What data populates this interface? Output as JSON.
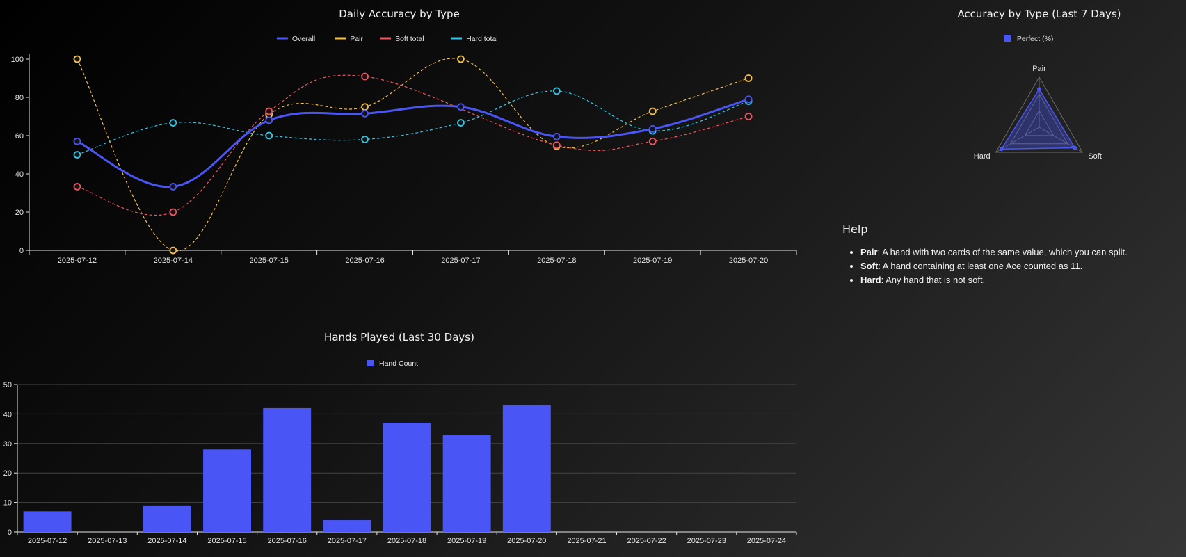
{
  "chart_data": [
    {
      "type": "line",
      "title": "Daily Accuracy by Type",
      "categories": [
        "2025-07-12",
        "2025-07-14",
        "2025-07-15",
        "2025-07-16",
        "2025-07-17",
        "2025-07-18",
        "2025-07-19",
        "2025-07-20"
      ],
      "ylim": [
        0,
        100
      ],
      "yticks": [
        0,
        20,
        40,
        60,
        80,
        100
      ],
      "legend_position": "top-center",
      "grid": false,
      "series": [
        {
          "name": "Overall",
          "color": "#4a55f5",
          "style": "solid",
          "values": [
            57,
            33.3,
            68,
            71.5,
            75,
            59.5,
            63.5,
            79
          ]
        },
        {
          "name": "Pair",
          "color": "#f5c04a",
          "style": "dashed",
          "values": [
            100,
            0,
            71,
            75,
            100,
            54.5,
            72.7,
            90
          ]
        },
        {
          "name": "Soft total",
          "color": "#ee5560",
          "style": "dashed",
          "values": [
            33.3,
            20,
            72.7,
            90.9,
            null,
            55,
            57,
            70
          ]
        },
        {
          "name": "Hard total",
          "color": "#33c6e8",
          "style": "dashed",
          "values": [
            50,
            66.7,
            60,
            58,
            66.7,
            83.3,
            62.5,
            78
          ]
        }
      ]
    },
    {
      "type": "radar",
      "title": "Accuracy by Type (Last 7 Days)",
      "legend_position": "top-center",
      "axes": [
        "Pair",
        "Soft",
        "Hard"
      ],
      "series": [
        {
          "name": "Perfect (%)",
          "color": "#4a55f5",
          "values": [
            76,
            82,
            87
          ]
        }
      ]
    },
    {
      "type": "bar",
      "title": "Hands Played (Last 30 Days)",
      "categories": [
        "2025-07-12",
        "2025-07-13",
        "2025-07-14",
        "2025-07-15",
        "2025-07-16",
        "2025-07-17",
        "2025-07-18",
        "2025-07-19",
        "2025-07-20",
        "2025-07-21",
        "2025-07-22",
        "2025-07-23",
        "2025-07-24"
      ],
      "ylim": [
        0,
        50
      ],
      "yticks": [
        0,
        10,
        20,
        30,
        40,
        50
      ],
      "grid": true,
      "legend_position": "top-center",
      "series": [
        {
          "name": "Hand Count",
          "color": "#4a55f5",
          "values": [
            7,
            0,
            9,
            28,
            42,
            4,
            37,
            33,
            43,
            0,
            0,
            0,
            0
          ]
        }
      ]
    }
  ],
  "help": {
    "heading": "Help",
    "items": [
      {
        "term": "Pair",
        "desc": ": A hand with two cards of the same value, which you can split."
      },
      {
        "term": "Soft",
        "desc": ": A hand containing at least one Ace counted as 11."
      },
      {
        "term": "Hard",
        "desc": ": Any hand that is not soft."
      }
    ]
  }
}
